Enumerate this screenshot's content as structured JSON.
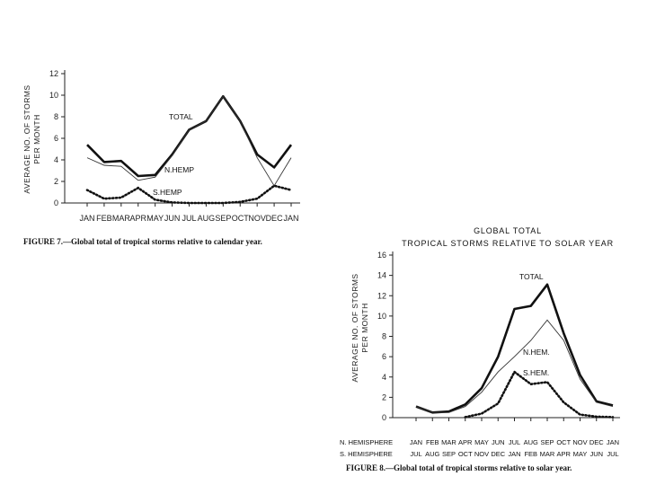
{
  "chart_data": [
    {
      "type": "line",
      "ylabel": [
        "AVERAGE NO. OF STORMS",
        "PER MONTH"
      ],
      "ylim": [
        0,
        12
      ],
      "yticks": [
        "0",
        "2",
        "4",
        "6",
        "8",
        "10",
        "12"
      ],
      "categories": [
        "JAN",
        "FEB",
        "MAR",
        "APR",
        "MAY",
        "JUN",
        "JUL",
        "AUG",
        "SEP",
        "OCT",
        "NOV",
        "DEC",
        "JAN"
      ],
      "series": [
        {
          "name": "TOTAL",
          "style": "thick",
          "values": [
            5.4,
            3.8,
            3.9,
            2.5,
            2.6,
            4.5,
            6.8,
            7.6,
            9.9,
            7.6,
            4.5,
            3.3,
            5.4
          ]
        },
        {
          "name": "N.HEMP",
          "style": "thin",
          "values": [
            4.2,
            3.5,
            3.4,
            2.1,
            2.4,
            4.4,
            6.8,
            7.6,
            9.9,
            7.6,
            4.2,
            1.6,
            4.2
          ]
        },
        {
          "name": "S.HEMP",
          "style": "dotted",
          "values": [
            1.2,
            0.4,
            0.5,
            1.4,
            0.3,
            0.05,
            0.0,
            0.0,
            0.0,
            0.1,
            0.4,
            1.6,
            1.2
          ]
        }
      ],
      "annotations": [
        "TOTAL",
        "N.HEMP",
        "S.HEMP"
      ],
      "caption": "FIGURE 7.—Global total of tropical storms relative to calendar year."
    },
    {
      "type": "line",
      "title": "GLOBAL TOTAL",
      "subtitle": "TROPICAL STORMS RELATIVE TO SOLAR YEAR",
      "ylabel": [
        "AVERAGE NO. OF STORMS",
        "PER MONTH"
      ],
      "ylim": [
        0,
        16
      ],
      "yticks": [
        "0",
        "2",
        "4",
        "6",
        "8",
        "10",
        "12",
        "14",
        "16"
      ],
      "nh_label": "N. HEMISPHERE",
      "sh_label": "S. HEMISPHERE",
      "categories_nh": [
        "JAN",
        "FEB",
        "MAR",
        "APR",
        "MAY",
        "JUN",
        "JUL",
        "AUG",
        "SEP",
        "OCT",
        "NOV",
        "DEC",
        "JAN"
      ],
      "categories_sh": [
        "JUL",
        "AUG",
        "SEP",
        "OCT",
        "NOV",
        "DEC",
        "JAN",
        "FEB",
        "MAR",
        "APR",
        "MAY",
        "JUN",
        "JUL"
      ],
      "series": [
        {
          "name": "TOTAL",
          "style": "thick",
          "values": [
            1.1,
            0.5,
            0.6,
            1.3,
            2.9,
            6.0,
            10.7,
            11.0,
            13.1,
            8.3,
            4.2,
            1.6,
            1.2
          ]
        },
        {
          "name": "N.HEM.",
          "style": "thin",
          "values": [
            1.1,
            0.5,
            0.5,
            1.1,
            2.5,
            4.5,
            6.0,
            7.6,
            9.6,
            7.6,
            3.8,
            1.5,
            1.1
          ]
        },
        {
          "name": "S.HEM.",
          "style": "dotted",
          "values": [
            null,
            null,
            null,
            0.05,
            0.4,
            1.4,
            4.5,
            3.3,
            3.5,
            1.5,
            0.3,
            0.1,
            0.05
          ]
        }
      ],
      "annotations": [
        "TOTAL",
        "N.HEM.",
        "S.HEM."
      ],
      "caption": "FIGURE 8.—Global total of tropical storms relative to solar year."
    }
  ]
}
